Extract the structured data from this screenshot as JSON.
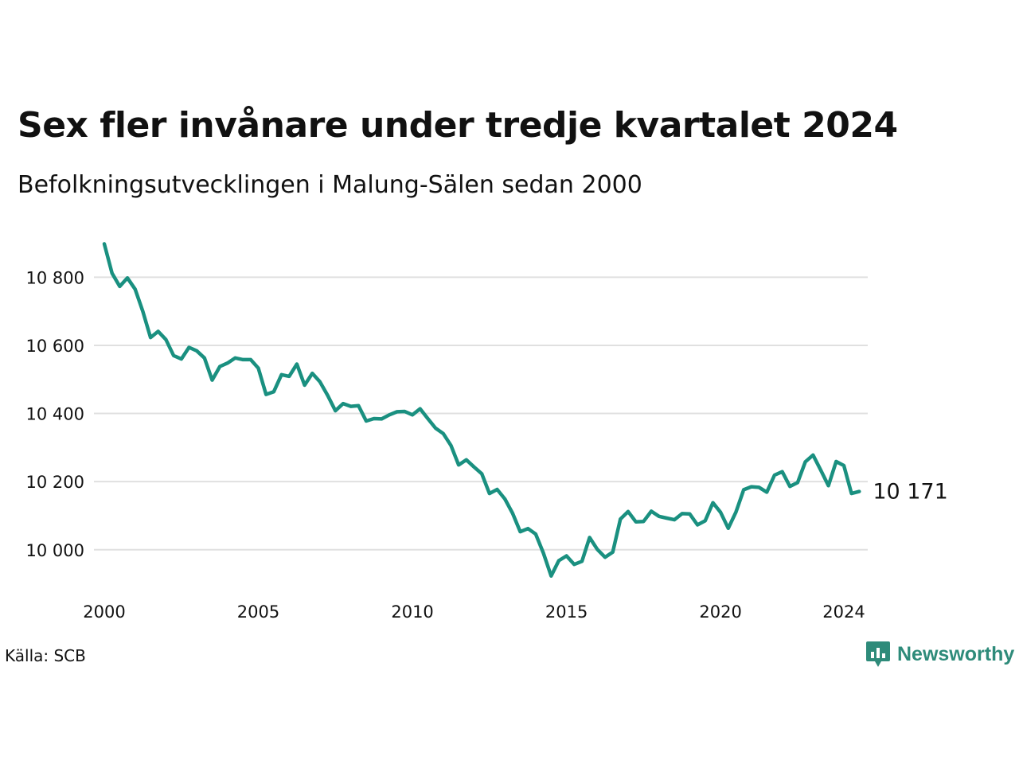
{
  "title": "Sex fler invånare under tredje kvartalet 2024",
  "subtitle": "Befolkningsutvecklingen i Malung-Sälen sedan 2000",
  "source": "Källa: SCB",
  "brand": {
    "name": "Newsworthy",
    "icon": "newsworthy-logo-icon",
    "color": "#2e8b7a"
  },
  "colors": {
    "line": "#1a9080",
    "grid": "#e0e0e0"
  },
  "chart_data": {
    "type": "line",
    "xlim": [
      2000,
      2024.75
    ],
    "ylim": [
      9920,
      10920
    ],
    "yticks": [
      10000,
      10200,
      10400,
      10600,
      10800
    ],
    "ytick_labels": [
      "10 000",
      "10 200",
      "10 400",
      "10 600",
      "10 800"
    ],
    "xticks": [
      2000,
      2005,
      2010,
      2015,
      2020,
      2024
    ],
    "xtick_labels": [
      "2000",
      "2005",
      "2010",
      "2015",
      "2020",
      "2024"
    ],
    "grid": true,
    "end_label": "10 171",
    "series": [
      {
        "x": [
          2000.0,
          2000.25,
          2000.5,
          2000.75,
          2001.0,
          2001.25,
          2001.5,
          2001.75,
          2002.0,
          2002.25,
          2002.5,
          2002.75,
          2003.0,
          2003.25,
          2003.5,
          2003.75,
          2004.0,
          2004.25,
          2004.5,
          2004.75,
          2005.0,
          2005.25,
          2005.5,
          2005.75,
          2006.0,
          2006.25,
          2006.5,
          2006.75,
          2007.0,
          2007.25,
          2007.5,
          2007.75,
          2008.0,
          2008.25,
          2008.5,
          2008.75,
          2009.0,
          2009.25,
          2009.5,
          2009.75,
          2010.0,
          2010.25,
          2010.5,
          2010.75,
          2011.0,
          2011.25,
          2011.5,
          2011.75,
          2012.0,
          2012.25,
          2012.5,
          2012.75,
          2013.0,
          2013.25,
          2013.5,
          2013.75,
          2014.0,
          2014.25,
          2014.5,
          2014.75,
          2015.0,
          2015.25,
          2015.5,
          2015.75,
          2016.0,
          2016.25,
          2016.5,
          2016.75,
          2017.0,
          2017.25,
          2017.5,
          2017.75,
          2018.0,
          2018.25,
          2018.5,
          2018.75,
          2019.0,
          2019.25,
          2019.5,
          2019.75,
          2020.0,
          2020.25,
          2020.5,
          2020.75,
          2021.0,
          2021.25,
          2021.5,
          2021.75,
          2022.0,
          2022.25,
          2022.5,
          2022.75,
          2023.0,
          2023.25,
          2023.5,
          2023.75,
          2024.0,
          2024.25,
          2024.5
        ],
        "values": [
          10898,
          10812,
          10773,
          10798,
          10765,
          10700,
          10623,
          10641,
          10617,
          10570,
          10560,
          10594,
          10584,
          10563,
          10498,
          10538,
          10548,
          10563,
          10558,
          10558,
          10533,
          10456,
          10464,
          10514,
          10509,
          10545,
          10483,
          10518,
          10493,
          10453,
          10408,
          10429,
          10421,
          10423,
          10378,
          10385,
          10384,
          10396,
          10405,
          10406,
          10396,
          10414,
          10385,
          10357,
          10341,
          10306,
          10249,
          10264,
          10243,
          10223,
          10165,
          10177,
          10149,
          10107,
          10053,
          10062,
          10046,
          9990,
          9923,
          9968,
          9982,
          9957,
          9966,
          10036,
          10001,
          9978,
          9993,
          10090,
          10112,
          10082,
          10083,
          10113,
          10098,
          10093,
          10088,
          10106,
          10105,
          10073,
          10085,
          10138,
          10110,
          10063,
          10111,
          10176,
          10185,
          10183,
          10169,
          10219,
          10229,
          10186,
          10197,
          10258,
          10278,
          10234,
          10188,
          10259,
          10247,
          10165,
          10171
        ]
      }
    ]
  }
}
